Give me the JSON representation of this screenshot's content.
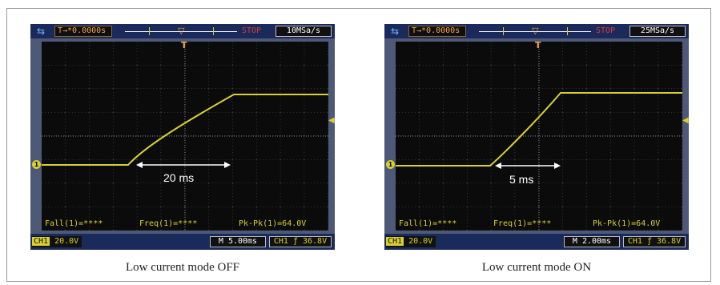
{
  "panels": [
    {
      "trigger_position": "T→*0.0000s",
      "status": "STOP",
      "sample_rate": "10MSa/s",
      "duration_label": "20 ms",
      "meas_fall": "Fall(1)=****",
      "meas_freq": "Freq(1)=****",
      "meas_pkpk": "Pk-Pk(1)=64.0V",
      "ch1_tag": "CH1",
      "ch1_scale": "20.0V",
      "time_base": "M 5.00ms",
      "trigger_level": "CH1 ƒ 36.8V",
      "caption": "Low current mode OFF"
    },
    {
      "trigger_position": "T→*0.0000s",
      "status": "STOP",
      "sample_rate": "25MSa/s",
      "duration_label": "5 ms",
      "meas_fall": "Fall(1)=****",
      "meas_freq": "Freq(1)=****",
      "meas_pkpk": "Pk-Pk(1)=64.0V",
      "ch1_tag": "CH1",
      "ch1_scale": "20.0V",
      "time_base": "M 2.00ms",
      "trigger_level": "CH1 ƒ 36.8V",
      "caption": "Low current mode ON"
    }
  ],
  "icons": {
    "usb": "usb-icon",
    "trigger_marker": "trigger-marker-icon",
    "channel_marker": "channel-1-marker-icon"
  },
  "colors": {
    "trace": "#d8d030",
    "trigger": "#f0a54a",
    "stop": "#e23a3a"
  }
}
